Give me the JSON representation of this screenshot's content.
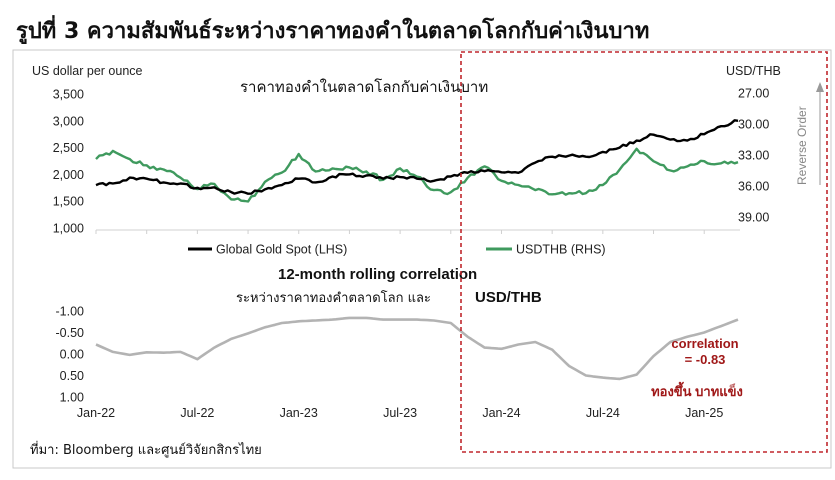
{
  "figure_title": "รูปที่ 3 ความสัมพันธ์ระหว่างราคาทองคำในตลาดโลกกับค่าเงินบาท",
  "source_note": "ที่มา: Bloomberg และศูนย์วิจัยกสิกรไทย",
  "chart_data": [
    {
      "type": "line",
      "title": "ราคาทองคำในตลาดโลกกับค่าเงินบาท",
      "ylabel_left": "US dollar per ounce",
      "ylabel_right": "USD/THB",
      "right_axis_note": "Reverse Order",
      "ylim_left": [
        1000,
        3500
      ],
      "yticks_left": [
        "3,500",
        "3,000",
        "2,500",
        "2,000",
        "1,500",
        "1,000"
      ],
      "ylim_right": [
        39,
        27
      ],
      "yticks_right": [
        "27.00",
        "30.00",
        "33.00",
        "36.00",
        "39.00"
      ],
      "right_axis_reversed": true,
      "legend_placement": "bottom",
      "series": [
        {
          "name": "Global Gold Spot (LHS)",
          "axis": "left",
          "color": "#000000",
          "points": [
            [
              "2022-01",
              1800
            ],
            [
              "2022-02",
              1830
            ],
            [
              "2022-03",
              1940
            ],
            [
              "2022-04",
              1920
            ],
            [
              "2022-05",
              1850
            ],
            [
              "2022-06",
              1830
            ],
            [
              "2022-07",
              1750
            ],
            [
              "2022-08",
              1760
            ],
            [
              "2022-09",
              1670
            ],
            [
              "2022-10",
              1640
            ],
            [
              "2022-11",
              1720
            ],
            [
              "2022-12",
              1800
            ],
            [
              "2023-01",
              1920
            ],
            [
              "2023-02",
              1850
            ],
            [
              "2023-03",
              1960
            ],
            [
              "2023-04",
              2000
            ],
            [
              "2023-05",
              1980
            ],
            [
              "2023-06",
              1920
            ],
            [
              "2023-07",
              1950
            ],
            [
              "2023-08",
              1920
            ],
            [
              "2023-09",
              1880
            ],
            [
              "2023-10",
              1960
            ],
            [
              "2023-11",
              2030
            ],
            [
              "2023-12",
              2060
            ],
            [
              "2024-01",
              2040
            ],
            [
              "2024-02",
              2030
            ],
            [
              "2024-03",
              2220
            ],
            [
              "2024-04",
              2330
            ],
            [
              "2024-05",
              2350
            ],
            [
              "2024-06",
              2330
            ],
            [
              "2024-07",
              2420
            ],
            [
              "2024-08",
              2500
            ],
            [
              "2024-09",
              2630
            ],
            [
              "2024-10",
              2740
            ],
            [
              "2024-11",
              2650
            ],
            [
              "2024-12",
              2630
            ],
            [
              "2025-01",
              2750
            ],
            [
              "2025-02",
              2900
            ],
            [
              "2025-03",
              3000
            ]
          ]
        },
        {
          "name": "USDTHB (RHS)",
          "axis": "right",
          "color": "#3f9a5e",
          "points": [
            [
              "2022-01",
              33.4
            ],
            [
              "2022-02",
              32.6
            ],
            [
              "2022-03",
              33.4
            ],
            [
              "2022-04",
              34.0
            ],
            [
              "2022-05",
              34.4
            ],
            [
              "2022-06",
              35.2
            ],
            [
              "2022-07",
              36.3
            ],
            [
              "2022-08",
              35.8
            ],
            [
              "2022-09",
              37.3
            ],
            [
              "2022-10",
              37.5
            ],
            [
              "2022-11",
              35.6
            ],
            [
              "2022-12",
              34.7
            ],
            [
              "2023-01",
              32.9
            ],
            [
              "2023-02",
              34.6
            ],
            [
              "2023-03",
              34.3
            ],
            [
              "2023-04",
              34.2
            ],
            [
              "2023-05",
              34.6
            ],
            [
              "2023-06",
              35.4
            ],
            [
              "2023-07",
              34.3
            ],
            [
              "2023-08",
              35.1
            ],
            [
              "2023-09",
              36.4
            ],
            [
              "2023-10",
              36.6
            ],
            [
              "2023-11",
              35.2
            ],
            [
              "2023-12",
              34.1
            ],
            [
              "2024-01",
              35.5
            ],
            [
              "2024-02",
              35.9
            ],
            [
              "2024-03",
              36.4
            ],
            [
              "2024-04",
              36.8
            ],
            [
              "2024-05",
              36.7
            ],
            [
              "2024-06",
              36.7
            ],
            [
              "2024-07",
              35.9
            ],
            [
              "2024-08",
              34.4
            ],
            [
              "2024-09",
              32.4
            ],
            [
              "2024-10",
              33.6
            ],
            [
              "2024-11",
              34.5
            ],
            [
              "2024-12",
              34.1
            ],
            [
              "2025-01",
              33.6
            ],
            [
              "2025-02",
              33.8
            ],
            [
              "2025-03",
              33.7
            ]
          ]
        }
      ]
    },
    {
      "type": "line",
      "title": "12-month rolling correlation",
      "subtitle": "ระหว่างราคาทองคำตลาดโลก และ USD/THB",
      "subtitle_thai": "ระหว่างราคาทองคำตลาดโลก และ",
      "subtitle_en": "USD/THB",
      "ylim": [
        -1.0,
        1.0
      ],
      "y_reversed": true,
      "yticks": [
        "-1.00",
        "-0.50",
        "0.00",
        "0.50",
        "1.00"
      ],
      "x_ticks": [
        "Jan-22",
        "Jul-22",
        "Jan-23",
        "Jul-23",
        "Jan-24",
        "Jul-24",
        "Jan-25"
      ],
      "x_range": [
        "2022-01",
        "2025-03"
      ],
      "annotations": [
        {
          "text": "correlation",
          "color": "#a01818"
        },
        {
          "text": "= -0.83",
          "color": "#a01818"
        },
        {
          "text": "ทองขึ้น บาทแข็ง",
          "color": "#a01818"
        }
      ],
      "highlight_color": "#c0272d",
      "series": [
        {
          "name": "",
          "color": "#b3b3b3",
          "points": [
            [
              "2022-01",
              -0.22
            ],
            [
              "2022-02",
              -0.05
            ],
            [
              "2022-03",
              0.02
            ],
            [
              "2022-04",
              -0.04
            ],
            [
              "2022-05",
              -0.03
            ],
            [
              "2022-06",
              -0.05
            ],
            [
              "2022-07",
              0.12
            ],
            [
              "2022-08",
              -0.15
            ],
            [
              "2022-09",
              -0.35
            ],
            [
              "2022-10",
              -0.48
            ],
            [
              "2022-11",
              -0.62
            ],
            [
              "2022-12",
              -0.72
            ],
            [
              "2023-01",
              -0.76
            ],
            [
              "2023-02",
              -0.78
            ],
            [
              "2023-03",
              -0.8
            ],
            [
              "2023-04",
              -0.84
            ],
            [
              "2023-05",
              -0.84
            ],
            [
              "2023-06",
              -0.8
            ],
            [
              "2023-07",
              -0.8
            ],
            [
              "2023-08",
              -0.8
            ],
            [
              "2023-09",
              -0.78
            ],
            [
              "2023-10",
              -0.72
            ],
            [
              "2023-11",
              -0.4
            ],
            [
              "2023-12",
              -0.15
            ],
            [
              "2024-01",
              -0.12
            ],
            [
              "2024-02",
              -0.22
            ],
            [
              "2024-03",
              -0.28
            ],
            [
              "2024-04",
              -0.1
            ],
            [
              "2024-05",
              0.28
            ],
            [
              "2024-06",
              0.5
            ],
            [
              "2024-07",
              0.55
            ],
            [
              "2024-08",
              0.58
            ],
            [
              "2024-09",
              0.48
            ],
            [
              "2024-10",
              0.05
            ],
            [
              "2024-11",
              -0.28
            ],
            [
              "2024-12",
              -0.4
            ],
            [
              "2025-01",
              -0.5
            ],
            [
              "2025-02",
              -0.65
            ],
            [
              "2025-03",
              -0.8
            ]
          ]
        }
      ]
    }
  ],
  "legend_items": [
    "Global Gold Spot (LHS)",
    "USDTHB (RHS)"
  ]
}
